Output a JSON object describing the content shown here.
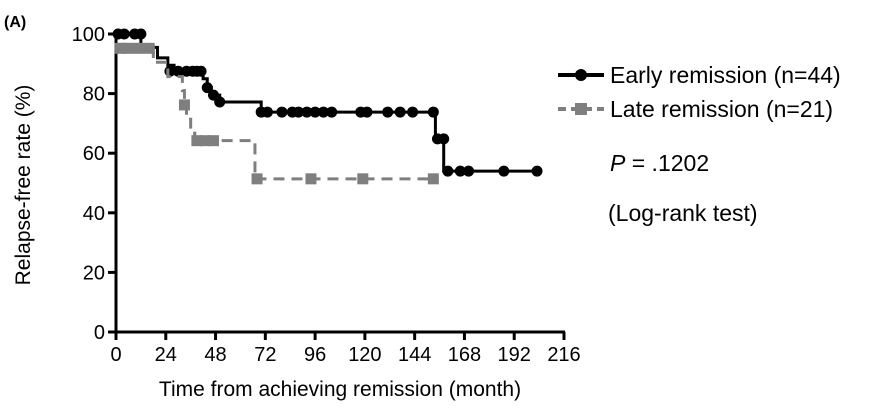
{
  "panel_label": "(A)",
  "chart_data": {
    "type": "line",
    "subtype": "kaplan-meier",
    "xlabel": "Time from achieving remission (month)",
    "ylabel": "Relapse-free rate (%)",
    "xlim": [
      0,
      216
    ],
    "ylim": [
      0,
      100
    ],
    "xticks": [
      0,
      24,
      48,
      72,
      96,
      120,
      144,
      168,
      192,
      216
    ],
    "yticks": [
      0,
      20,
      40,
      60,
      80,
      100
    ],
    "grid": false,
    "legend_position": "right",
    "series": [
      {
        "name": "Early remission (n=44)",
        "color": "#000000",
        "line_style": "solid",
        "marker": "circle",
        "steps": [
          [
            0,
            100
          ],
          [
            12,
            95.5
          ],
          [
            20,
            92
          ],
          [
            25,
            89.5
          ],
          [
            28,
            87.5
          ],
          [
            42,
            85
          ],
          [
            44,
            82
          ],
          [
            46,
            79.5
          ],
          [
            50,
            77.2
          ],
          [
            70,
            73.8
          ],
          [
            154,
            64.8
          ],
          [
            158,
            54
          ]
        ],
        "end": 204,
        "censored": [
          [
            1,
            100
          ],
          [
            4,
            100
          ],
          [
            9,
            100
          ],
          [
            12,
            100
          ],
          [
            26,
            87.5
          ],
          [
            30,
            87.5
          ],
          [
            34,
            87.5
          ],
          [
            37,
            87.5
          ],
          [
            39,
            87.5
          ],
          [
            41,
            87.5
          ],
          [
            44,
            82
          ],
          [
            47,
            79.5
          ],
          [
            50,
            77.2
          ],
          [
            70,
            73.8
          ],
          [
            73,
            73.8
          ],
          [
            80,
            73.8
          ],
          [
            85,
            73.8
          ],
          [
            88,
            73.8
          ],
          [
            92,
            73.8
          ],
          [
            96,
            73.8
          ],
          [
            100,
            73.8
          ],
          [
            104,
            73.8
          ],
          [
            118,
            73.8
          ],
          [
            121,
            73.8
          ],
          [
            131,
            73.8
          ],
          [
            137,
            73.8
          ],
          [
            143,
            73.8
          ],
          [
            153,
            73.8
          ],
          [
            155,
            64.8
          ],
          [
            158,
            64.8
          ],
          [
            160,
            54
          ],
          [
            166,
            54
          ],
          [
            170,
            54
          ],
          [
            187,
            54
          ],
          [
            203,
            54
          ]
        ]
      },
      {
        "name": "Late remission (n=21)",
        "color": "#7f7f7f",
        "line_style": "dashed",
        "marker": "square",
        "steps": [
          [
            0,
            95.2
          ],
          [
            18,
            90.5
          ],
          [
            25,
            85.7
          ],
          [
            32,
            81
          ],
          [
            33,
            76.2
          ],
          [
            34,
            71.4
          ],
          [
            36,
            66.7
          ],
          [
            38,
            64.2
          ],
          [
            67,
            51.4
          ]
        ],
        "end": 153,
        "censored": [
          [
            2,
            95.2
          ],
          [
            6,
            95.2
          ],
          [
            11,
            95.2
          ],
          [
            16,
            95.2
          ],
          [
            33,
            76.2
          ],
          [
            39,
            64.2
          ],
          [
            43,
            64.2
          ],
          [
            47,
            64.2
          ],
          [
            68,
            51.4
          ],
          [
            94,
            51.4
          ],
          [
            119,
            51.4
          ],
          [
            153,
            51.4
          ]
        ]
      }
    ],
    "annotations": [
      {
        "symbol": "P",
        "text": " = .1202"
      },
      {
        "text": "(Log-rank test)"
      }
    ]
  }
}
